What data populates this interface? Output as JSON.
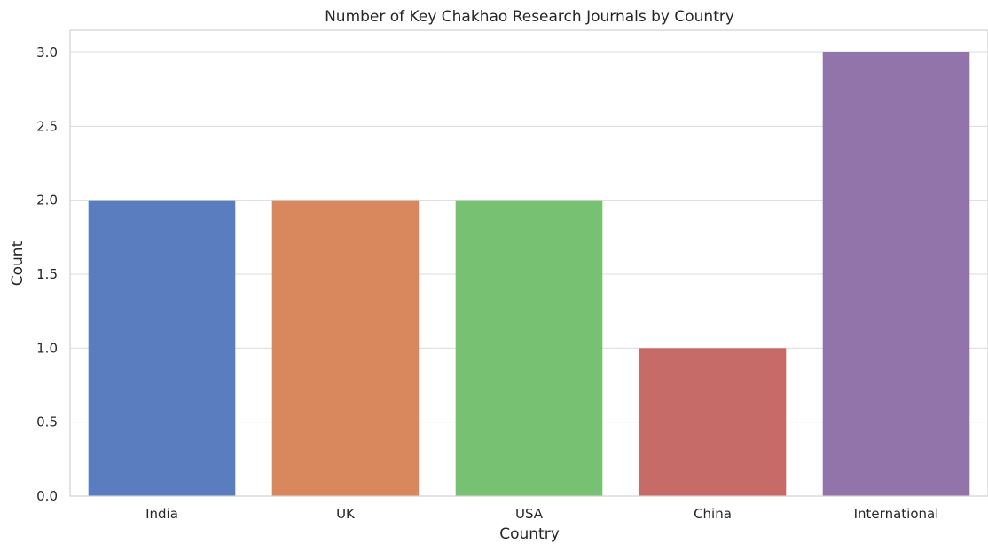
{
  "chart_data": {
    "type": "bar",
    "title": "Number of Key Chakhao Research Journals by Country",
    "xlabel": "Country",
    "ylabel": "Count",
    "categories": [
      "India",
      "UK",
      "USA",
      "China",
      "International"
    ],
    "values": [
      2,
      2,
      2,
      1,
      3
    ],
    "colors": [
      "#5a7dbf",
      "#d9885e",
      "#77c173",
      "#c76b69",
      "#9274ab"
    ],
    "ylim": [
      0,
      3.15
    ],
    "yticks": [
      0.0,
      0.5,
      1.0,
      1.5,
      2.0,
      2.5,
      3.0
    ],
    "ytick_labels": [
      "0.0",
      "0.5",
      "1.0",
      "1.5",
      "2.0",
      "2.5",
      "3.0"
    ],
    "grid": "horizontal",
    "legend": "none"
  }
}
